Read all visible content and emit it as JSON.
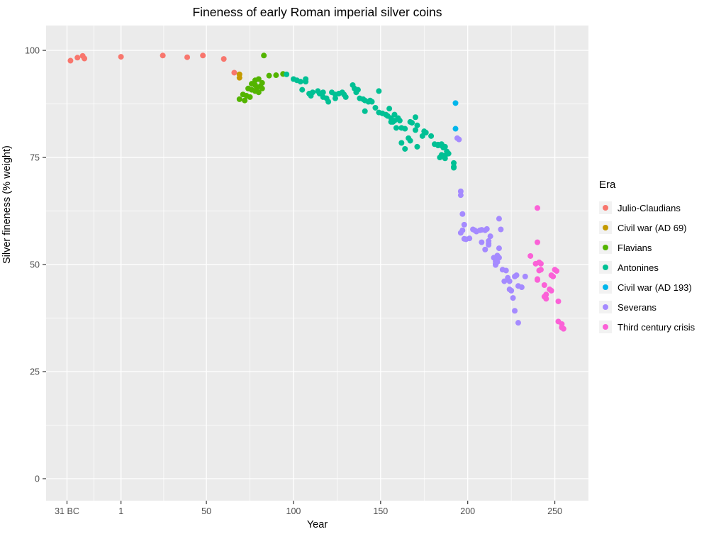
{
  "chart_data": {
    "type": "scatter",
    "title": "Fineness of early Roman imperial silver coins",
    "xlabel": "Year",
    "ylabel": "Silver fineness (% weight)",
    "legend_title": "Era",
    "legend_position": "right",
    "panel_bg": "#EBEBEB",
    "grid_color": "#FFFFFF",
    "tick_color": "#333333",
    "tick_label_color": "#4D4D4D",
    "grid": "major and minor gridlines, white on grey panel",
    "point_radius": 4,
    "xlim": [
      -42,
      269.3
    ],
    "ylim": [
      -5.13,
      105.8
    ],
    "x_ticks": [
      {
        "value": -30,
        "label": "31 BC"
      },
      {
        "value": 1,
        "label": "1"
      },
      {
        "value": 50,
        "label": "50"
      },
      {
        "value": 100,
        "label": "100"
      },
      {
        "value": 150,
        "label": "150"
      },
      {
        "value": 200,
        "label": "200"
      },
      {
        "value": 250,
        "label": "250"
      }
    ],
    "y_ticks": [
      {
        "value": 0,
        "label": "0"
      },
      {
        "value": 25,
        "label": "25"
      },
      {
        "value": 50,
        "label": "50"
      },
      {
        "value": 75,
        "label": "75"
      },
      {
        "value": 100,
        "label": "100"
      }
    ],
    "x_minor": [
      -14.5,
      25.5,
      75,
      125,
      175,
      225
    ],
    "y_minor": [
      12.5,
      37.5,
      62.5,
      87.5
    ],
    "series": [
      {
        "name": "Julio-Claudians",
        "color": "#F8766D",
        "points": [
          [
            -28,
            97.6
          ],
          [
            -24,
            98.3
          ],
          [
            -21,
            98.7
          ],
          [
            -20,
            98.1
          ],
          [
            1,
            98.5
          ],
          [
            25,
            98.8
          ],
          [
            39,
            98.4
          ],
          [
            48,
            98.8
          ],
          [
            60,
            98.0
          ],
          [
            66,
            94.8
          ]
        ]
      },
      {
        "name": "Civil war (AD 69)",
        "color": "#C49A00",
        "points": [
          [
            69,
            94.4
          ],
          [
            69,
            93.6
          ]
        ]
      },
      {
        "name": "Flavians",
        "color": "#53B400",
        "points": [
          [
            69,
            88.6
          ],
          [
            71,
            89.7
          ],
          [
            72,
            88.3
          ],
          [
            73,
            89.4
          ],
          [
            74,
            91.1
          ],
          [
            75,
            89.1
          ],
          [
            76,
            92.2
          ],
          [
            76,
            90.8
          ],
          [
            78,
            91.9
          ],
          [
            78,
            93.0
          ],
          [
            78,
            90.5
          ],
          [
            79,
            91.3
          ],
          [
            80,
            93.3
          ],
          [
            80,
            90.2
          ],
          [
            81,
            91.6
          ],
          [
            82,
            92.4
          ],
          [
            82,
            91.1
          ],
          [
            83,
            98.8
          ],
          [
            86,
            94.1
          ],
          [
            90,
            94.2
          ],
          [
            94,
            94.5
          ]
        ]
      },
      {
        "name": "Antonines",
        "color": "#00C094",
        "points": [
          [
            96,
            94.4
          ],
          [
            100,
            93.3
          ],
          [
            102,
            93.0
          ],
          [
            104,
            92.7
          ],
          [
            105,
            90.8
          ],
          [
            107,
            92.7
          ],
          [
            107,
            93.3
          ],
          [
            109,
            89.9
          ],
          [
            110,
            89.4
          ],
          [
            111,
            90.2
          ],
          [
            114,
            90.5
          ],
          [
            115,
            89.9
          ],
          [
            117,
            90.2
          ],
          [
            117,
            89.1
          ],
          [
            119,
            88.8
          ],
          [
            120,
            88.0
          ],
          [
            122,
            90.2
          ],
          [
            124,
            89.7
          ],
          [
            124,
            88.8
          ],
          [
            126,
            89.9
          ],
          [
            128,
            90.2
          ],
          [
            129,
            89.7
          ],
          [
            130,
            89.1
          ],
          [
            134,
            91.9
          ],
          [
            135,
            91.1
          ],
          [
            136,
            90.2
          ],
          [
            137,
            90.8
          ],
          [
            138,
            88.8
          ],
          [
            140,
            88.6
          ],
          [
            141,
            88.3
          ],
          [
            141,
            85.8
          ],
          [
            143,
            88.0
          ],
          [
            144,
            88.3
          ],
          [
            145,
            88.0
          ],
          [
            147,
            86.6
          ],
          [
            149,
            90.5
          ],
          [
            149,
            85.5
          ],
          [
            151,
            85.3
          ],
          [
            153,
            85.0
          ],
          [
            154,
            84.7
          ],
          [
            155,
            86.4
          ],
          [
            156,
            84.2
          ],
          [
            156,
            83.3
          ],
          [
            157,
            83.3
          ],
          [
            158,
            85.0
          ],
          [
            158,
            83.6
          ],
          [
            159,
            81.9
          ],
          [
            160,
            84.2
          ],
          [
            161,
            83.6
          ],
          [
            162,
            78.4
          ],
          [
            162,
            81.9
          ],
          [
            164,
            81.7
          ],
          [
            164,
            77.0
          ],
          [
            166,
            79.5
          ],
          [
            167,
            83.3
          ],
          [
            167,
            78.9
          ],
          [
            168,
            83.1
          ],
          [
            170,
            84.4
          ],
          [
            170,
            81.4
          ],
          [
            171,
            82.5
          ],
          [
            171,
            77.5
          ],
          [
            174,
            80.0
          ],
          [
            175,
            81.1
          ],
          [
            176,
            80.8
          ],
          [
            179,
            80.0
          ],
          [
            181,
            78.1
          ],
          [
            183,
            77.8
          ],
          [
            183,
            78.0
          ],
          [
            184,
            75.0
          ],
          [
            185,
            78.1
          ],
          [
            185,
            77.8
          ],
          [
            185,
            75.6
          ],
          [
            186,
            77.3
          ],
          [
            187,
            77.5
          ],
          [
            187,
            75.4
          ],
          [
            187,
            74.8
          ],
          [
            188,
            76.4
          ],
          [
            189,
            75.9
          ],
          [
            192,
            73.7
          ],
          [
            192,
            72.6
          ],
          [
            192,
            72.8
          ]
        ]
      },
      {
        "name": "Civil war (AD 193)",
        "color": "#00B6EB",
        "points": [
          [
            193,
            87.7
          ],
          [
            193,
            81.7
          ]
        ]
      },
      {
        "name": "Severans",
        "color": "#A58AFF",
        "points": [
          [
            194,
            79.5
          ],
          [
            195,
            79.2
          ],
          [
            196,
            67.1
          ],
          [
            196,
            66.2
          ],
          [
            197,
            61.8
          ],
          [
            198,
            59.3
          ],
          [
            197,
            58.0
          ],
          [
            196,
            57.4
          ],
          [
            198,
            56.0
          ],
          [
            199,
            55.9
          ],
          [
            201,
            56.1
          ],
          [
            203,
            58.2
          ],
          [
            204,
            58.0
          ],
          [
            205,
            57.7
          ],
          [
            207,
            58.0
          ],
          [
            208,
            58.1
          ],
          [
            210,
            58.0
          ],
          [
            211,
            58.3
          ],
          [
            208,
            55.2
          ],
          [
            212,
            55.5
          ],
          [
            212,
            54.6
          ],
          [
            210,
            53.5
          ],
          [
            213,
            56.6
          ],
          [
            212,
            54.9
          ],
          [
            218,
            60.7
          ],
          [
            219,
            58.2
          ],
          [
            218,
            53.8
          ],
          [
            217,
            52.1
          ],
          [
            215,
            51.6
          ],
          [
            216,
            51.3
          ],
          [
            216,
            50.8
          ],
          [
            217,
            50.6
          ],
          [
            216,
            49.9
          ],
          [
            216,
            50.2
          ],
          [
            218,
            51.6
          ],
          [
            220,
            48.8
          ],
          [
            222,
            48.6
          ],
          [
            223,
            46.9
          ],
          [
            221,
            46.1
          ],
          [
            224,
            46.1
          ],
          [
            227,
            47.2
          ],
          [
            228,
            47.5
          ],
          [
            233,
            47.2
          ],
          [
            229,
            45.0
          ],
          [
            231,
            44.7
          ],
          [
            224,
            44.2
          ],
          [
            225,
            43.9
          ],
          [
            226,
            42.2
          ],
          [
            227,
            39.2
          ],
          [
            229,
            36.4
          ]
        ]
      },
      {
        "name": "Third century crisis",
        "color": "#FB61D7",
        "points": [
          [
            236,
            52.0
          ],
          [
            240,
            63.2
          ],
          [
            240,
            55.2
          ],
          [
            239,
            50.2
          ],
          [
            241,
            50.5
          ],
          [
            242,
            50.2
          ],
          [
            241,
            48.6
          ],
          [
            242,
            48.8
          ],
          [
            240,
            46.6
          ],
          [
            240,
            46.4
          ],
          [
            244,
            45.2
          ],
          [
            244,
            42.5
          ],
          [
            245,
            43.0
          ],
          [
            245,
            42.0
          ],
          [
            247,
            44.2
          ],
          [
            248,
            47.5
          ],
          [
            248,
            43.9
          ],
          [
            249,
            47.2
          ],
          [
            250,
            48.8
          ],
          [
            251,
            48.5
          ],
          [
            252,
            41.4
          ],
          [
            252,
            36.7
          ],
          [
            254,
            36.1
          ],
          [
            254,
            35.3
          ],
          [
            255,
            35.0
          ]
        ]
      }
    ]
  }
}
